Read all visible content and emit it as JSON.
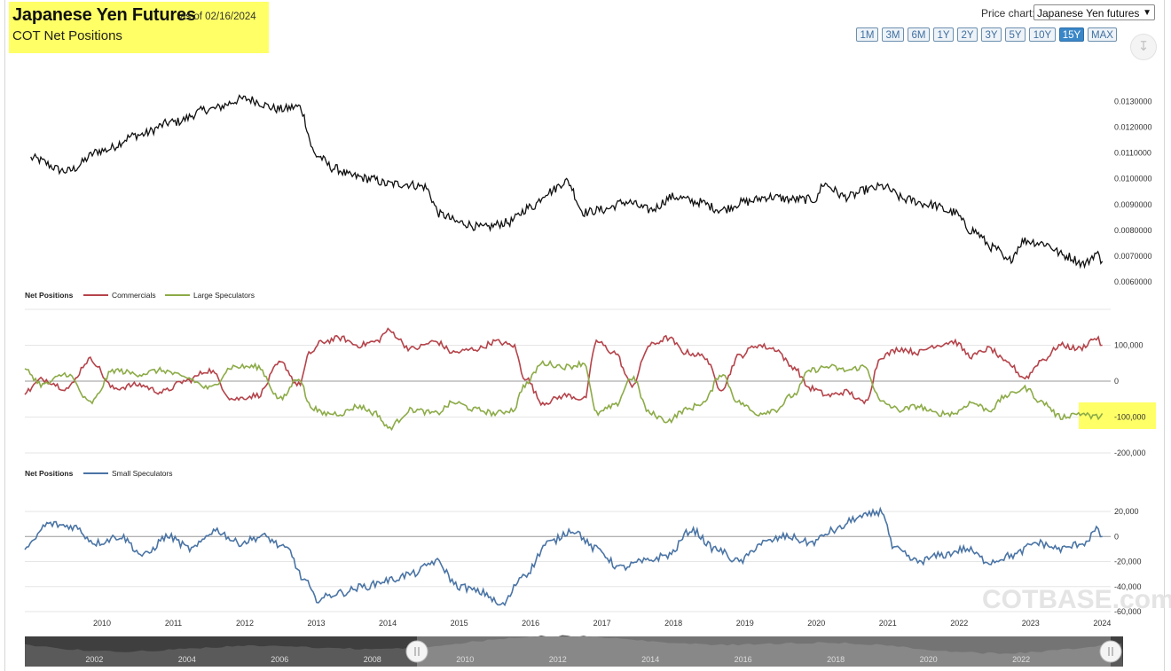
{
  "header": {
    "title": "Japanese Yen Futures",
    "as_of": "as of 02/16/2024",
    "subtitle": "COT Net Positions"
  },
  "price_chart_selector": {
    "label": "Price chart:",
    "selected": "Japanese Yen futures"
  },
  "range_buttons": [
    "1M",
    "3M",
    "6M",
    "1Y",
    "2Y",
    "3Y",
    "5Y",
    "10Y",
    "15Y",
    "MAX"
  ],
  "active_range": "15Y",
  "watermark": "COTBASE.com",
  "colors": {
    "price": "#111111",
    "commercials": "#b5434a",
    "large_speculators": "#8cab47",
    "small_speculators": "#4a74a5",
    "highlight": "#ffff66"
  },
  "chart_data": [
    {
      "type": "line",
      "series": [
        {
          "name": "",
          "x": [
            "2009-02",
            "2009-08",
            "2010-02",
            "2010-08",
            "2011-02",
            "2011-08",
            "2012-02",
            "2012-08",
            "2012-11",
            "2013-02",
            "2013-05",
            "2013-08",
            "2013-11",
            "2014-02",
            "2014-05",
            "2014-08",
            "2014-11",
            "2015-02",
            "2015-06",
            "2015-10",
            "2016-02",
            "2016-05",
            "2016-08",
            "2016-11",
            "2017-02",
            "2017-06",
            "2017-10",
            "2018-02",
            "2018-06",
            "2018-10",
            "2019-02",
            "2019-06",
            "2019-10",
            "2020-02",
            "2020-03",
            "2020-07",
            "2020-11",
            "2021-01",
            "2021-05",
            "2021-09",
            "2022-01",
            "2022-04",
            "2022-08",
            "2022-10",
            "2023-01",
            "2023-04",
            "2023-08",
            "2023-11",
            "2024-01",
            "2024-02"
          ],
          "values": [
            0.0108,
            0.0103,
            0.0111,
            0.0117,
            0.0122,
            0.0127,
            0.0131,
            0.0127,
            0.0128,
            0.0109,
            0.0104,
            0.0101,
            0.01,
            0.0098,
            0.0098,
            0.0097,
            0.0086,
            0.0083,
            0.0081,
            0.0083,
            0.0089,
            0.0095,
            0.0099,
            0.0087,
            0.0088,
            0.0091,
            0.0088,
            0.0093,
            0.0091,
            0.0088,
            0.0091,
            0.0093,
            0.0092,
            0.0092,
            0.0098,
            0.0093,
            0.0096,
            0.0097,
            0.0092,
            0.009,
            0.0087,
            0.008,
            0.0073,
            0.0068,
            0.0076,
            0.0075,
            0.007,
            0.0067,
            0.0071,
            0.0068
          ]
        }
      ],
      "y_ticks": [
        "0.0130000",
        "0.0120000",
        "0.0110000",
        "0.0100000",
        "0.0090000",
        "0.0080000",
        "0.0070000",
        "0.0060000"
      ],
      "ylim": [
        0.006,
        0.0135
      ]
    },
    {
      "type": "line",
      "legend_title": "Net Positions",
      "x": [
        "2009-01",
        "2009-04",
        "2009-08",
        "2009-12",
        "2010-04",
        "2010-08",
        "2010-12",
        "2011-04",
        "2011-08",
        "2011-12",
        "2012-04",
        "2012-08",
        "2012-11",
        "2013-01",
        "2013-03",
        "2013-06",
        "2013-09",
        "2013-12",
        "2014-02",
        "2014-06",
        "2014-10",
        "2015-01",
        "2015-05",
        "2015-08",
        "2015-11",
        "2016-01",
        "2016-04",
        "2016-08",
        "2016-11",
        "2017-01",
        "2017-04",
        "2017-07",
        "2017-10",
        "2018-01",
        "2018-04",
        "2018-07",
        "2018-10",
        "2019-01",
        "2019-04",
        "2019-07",
        "2019-10",
        "2020-01",
        "2020-04",
        "2020-07",
        "2020-10",
        "2021-01",
        "2021-04",
        "2021-07",
        "2021-10",
        "2022-01",
        "2022-04",
        "2022-07",
        "2022-10",
        "2023-01",
        "2023-04",
        "2023-07",
        "2023-10",
        "2024-01",
        "2024-02"
      ],
      "series": [
        {
          "name": "Commercials",
          "values": [
            -30000,
            5000,
            -20000,
            60000,
            -20000,
            -10000,
            -30000,
            0,
            30000,
            -50000,
            -40000,
            50000,
            -10000,
            80000,
            110000,
            120000,
            100000,
            110000,
            140000,
            90000,
            110000,
            80000,
            90000,
            110000,
            100000,
            10000,
            -60000,
            -40000,
            -50000,
            110000,
            80000,
            -10000,
            100000,
            120000,
            80000,
            70000,
            -20000,
            70000,
            100000,
            90000,
            40000,
            -20000,
            -40000,
            -30000,
            -60000,
            70000,
            90000,
            80000,
            100000,
            110000,
            70000,
            90000,
            50000,
            10000,
            60000,
            100000,
            90000,
            120000,
            100000
          ]
        },
        {
          "name": "Large Speculators",
          "values": [
            30000,
            -10000,
            20000,
            -60000,
            30000,
            20000,
            30000,
            10000,
            -20000,
            40000,
            40000,
            -50000,
            10000,
            -70000,
            -90000,
            -90000,
            -70000,
            -90000,
            -130000,
            -80000,
            -90000,
            -60000,
            -80000,
            -90000,
            -80000,
            -10000,
            50000,
            40000,
            50000,
            -90000,
            -70000,
            10000,
            -90000,
            -110000,
            -80000,
            -60000,
            20000,
            -60000,
            -90000,
            -80000,
            -40000,
            30000,
            40000,
            30000,
            40000,
            -60000,
            -80000,
            -70000,
            -90000,
            -90000,
            -60000,
            -80000,
            -40000,
            -20000,
            -60000,
            -100000,
            -90000,
            -100000,
            -90000
          ]
        }
      ],
      "y_ticks": [
        "100,000",
        "0",
        "-100,000",
        "-200,000"
      ],
      "ylim": [
        -200000,
        200000
      ],
      "highlighted_value": "-100,000"
    },
    {
      "type": "line",
      "legend_title": "Net Positions",
      "x": [
        "2009-01",
        "2009-05",
        "2009-09",
        "2010-01",
        "2010-05",
        "2010-09",
        "2011-01",
        "2011-05",
        "2011-09",
        "2012-01",
        "2012-05",
        "2012-09",
        "2012-12",
        "2013-02",
        "2013-06",
        "2013-10",
        "2014-02",
        "2014-06",
        "2014-10",
        "2015-02",
        "2015-06",
        "2015-09",
        "2016-01",
        "2016-05",
        "2016-09",
        "2017-01",
        "2017-05",
        "2017-09",
        "2018-01",
        "2018-05",
        "2018-09",
        "2019-01",
        "2019-05",
        "2019-09",
        "2020-01",
        "2020-05",
        "2020-09",
        "2021-01",
        "2021-03",
        "2021-07",
        "2021-11",
        "2022-03",
        "2022-07",
        "2022-11",
        "2023-03",
        "2023-07",
        "2023-11",
        "2024-01",
        "2024-02"
      ],
      "series": [
        {
          "name": "Small Speculators",
          "values": [
            -10000,
            10000,
            8000,
            -5000,
            0,
            -15000,
            0,
            -10000,
            5000,
            -5000,
            0,
            -10000,
            -35000,
            -50000,
            -45000,
            -40000,
            -35000,
            -30000,
            -20000,
            -40000,
            -45000,
            -55000,
            -30000,
            -5000,
            5000,
            -10000,
            -25000,
            -20000,
            -15000,
            5000,
            -10000,
            -20000,
            -5000,
            0,
            -5000,
            5000,
            15000,
            20000,
            -10000,
            -20000,
            -15000,
            -10000,
            -20000,
            -15000,
            -5000,
            -10000,
            -5000,
            5000,
            0
          ]
        }
      ],
      "y_ticks": [
        "20,000",
        "0",
        "-20,000",
        "-40,000",
        "-60,000"
      ],
      "ylim": [
        -60000,
        20000
      ]
    }
  ],
  "x_axis_years": [
    "2010",
    "2011",
    "2012",
    "2013",
    "2014",
    "2015",
    "2016",
    "2017",
    "2018",
    "2019",
    "2020",
    "2021",
    "2022",
    "2023",
    "2024"
  ],
  "navigator_years": [
    "2002",
    "2004",
    "2006",
    "2008",
    "2010",
    "2012",
    "2014",
    "2016",
    "2018",
    "2020",
    "2022"
  ]
}
